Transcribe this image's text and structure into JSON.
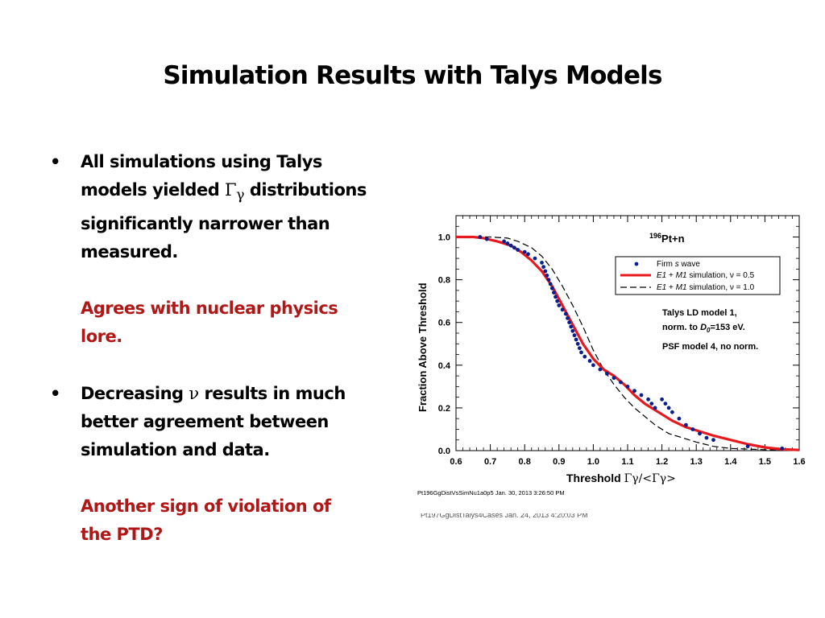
{
  "slide": {
    "title": "Simulation Results with Talys Models",
    "bullets": [
      {
        "lines": [
          "All simulations using Talys",
          "significantly narrower than",
          "measured."
        ],
        "line2_pre": "models yielded ",
        "line2_gamma": "Γ",
        "line2_gamma_sub": "γ",
        "line2_post": " distributions",
        "note_lines": [
          "Agrees with nuclear physics",
          "lore."
        ]
      },
      {
        "line1_pre": "Decreasing ",
        "line1_nu": "ν",
        "line1_post": " results in much",
        "lines": [
          "better agreement between",
          "simulation and data."
        ],
        "note_lines": [
          "Another sign of violation of",
          "the PTD?"
        ]
      }
    ],
    "bullet_marker": "•"
  },
  "chart_data": {
    "type": "line",
    "title": "196Pt+n",
    "title_sup": "196",
    "title_main": "Pt+n",
    "xlabel_pre": "Threshold ",
    "xlabel_formula": "Γγ/<Γγ>",
    "ylabel": "Fraction Above Threshold",
    "xlim": [
      0.6,
      1.6
    ],
    "ylim": [
      0.0,
      1.1
    ],
    "x_ticks": [
      "0.6",
      "0.7",
      "0.8",
      "0.9",
      "1.0",
      "1.1",
      "1.2",
      "1.3",
      "1.4",
      "1.5",
      "1.6"
    ],
    "y_ticks": [
      "0.0",
      "0.2",
      "0.4",
      "0.6",
      "0.8",
      "1.0"
    ],
    "legend": {
      "placement": "top-right",
      "entries": [
        {
          "pre": "Firm ",
          "em": "s",
          "post": " wave",
          "style": "points"
        },
        {
          "pre": "",
          "em": "E1",
          "mid": " + ",
          "em2": "M1",
          "post": " simulation, ν = 0.5",
          "style": "solid-red"
        },
        {
          "pre": "",
          "em": "E1",
          "mid": " + ",
          "em2": "M1",
          "post": " simulation, ν = 1.0",
          "style": "dashed-black"
        }
      ]
    },
    "annotations": [
      "Talys LD model 1,",
      "norm. to ",
      "D",
      "0",
      "=153 eV.",
      "PSF model 4, no norm."
    ],
    "footer_stamp": "Pt196GgDistVsSimNu1a0p5  Jan. 30, 2013  3:26:50 PM",
    "under_stamp": "Pt197GgDistTalys4Cases  Jan. 24, 2013  4:20:03 PM",
    "colors": {
      "data": "#0a1f8f",
      "sim_nu05": "#e8191c",
      "sim_nu10": "#000000"
    },
    "series": [
      {
        "name": "Firm s wave",
        "style": "points",
        "points": [
          [
            0.67,
            1.0
          ],
          [
            0.69,
            0.99
          ],
          [
            0.74,
            0.98
          ],
          [
            0.75,
            0.97
          ],
          [
            0.76,
            0.96
          ],
          [
            0.77,
            0.95
          ],
          [
            0.78,
            0.94
          ],
          [
            0.8,
            0.93
          ],
          [
            0.81,
            0.92
          ],
          [
            0.83,
            0.9
          ],
          [
            0.85,
            0.88
          ],
          [
            0.855,
            0.86
          ],
          [
            0.86,
            0.84
          ],
          [
            0.865,
            0.82
          ],
          [
            0.87,
            0.8
          ],
          [
            0.875,
            0.78
          ],
          [
            0.88,
            0.76
          ],
          [
            0.885,
            0.74
          ],
          [
            0.89,
            0.72
          ],
          [
            0.895,
            0.7
          ],
          [
            0.9,
            0.68
          ],
          [
            0.91,
            0.66
          ],
          [
            0.92,
            0.64
          ],
          [
            0.925,
            0.62
          ],
          [
            0.93,
            0.6
          ],
          [
            0.935,
            0.58
          ],
          [
            0.94,
            0.56
          ],
          [
            0.945,
            0.54
          ],
          [
            0.95,
            0.52
          ],
          [
            0.955,
            0.5
          ],
          [
            0.96,
            0.48
          ],
          [
            0.965,
            0.46
          ],
          [
            0.975,
            0.44
          ],
          [
            0.99,
            0.42
          ],
          [
            1.0,
            0.4
          ],
          [
            1.02,
            0.38
          ],
          [
            1.04,
            0.36
          ],
          [
            1.06,
            0.34
          ],
          [
            1.08,
            0.32
          ],
          [
            1.1,
            0.3
          ],
          [
            1.12,
            0.28
          ],
          [
            1.14,
            0.26
          ],
          [
            1.16,
            0.24
          ],
          [
            1.17,
            0.22
          ],
          [
            1.18,
            0.2
          ],
          [
            1.2,
            0.24
          ],
          [
            1.21,
            0.22
          ],
          [
            1.22,
            0.2
          ],
          [
            1.23,
            0.18
          ],
          [
            1.25,
            0.15
          ],
          [
            1.27,
            0.12
          ],
          [
            1.29,
            0.1
          ],
          [
            1.31,
            0.08
          ],
          [
            1.33,
            0.06
          ],
          [
            1.35,
            0.05
          ],
          [
            1.45,
            0.02
          ],
          [
            1.55,
            0.01
          ]
        ]
      },
      {
        "name": "E1 + M1 simulation, ν = 0.5",
        "style": "solid",
        "points": [
          [
            0.6,
            1.0
          ],
          [
            0.65,
            1.0
          ],
          [
            0.68,
            0.995
          ],
          [
            0.72,
            0.98
          ],
          [
            0.76,
            0.96
          ],
          [
            0.79,
            0.93
          ],
          [
            0.82,
            0.89
          ],
          [
            0.85,
            0.84
          ],
          [
            0.88,
            0.77
          ],
          [
            0.91,
            0.68
          ],
          [
            0.94,
            0.59
          ],
          [
            0.97,
            0.5
          ],
          [
            1.0,
            0.43
          ],
          [
            1.03,
            0.38
          ],
          [
            1.06,
            0.35
          ],
          [
            1.09,
            0.31
          ],
          [
            1.12,
            0.26
          ],
          [
            1.15,
            0.22
          ],
          [
            1.19,
            0.18
          ],
          [
            1.23,
            0.14
          ],
          [
            1.27,
            0.11
          ],
          [
            1.31,
            0.09
          ],
          [
            1.35,
            0.07
          ],
          [
            1.4,
            0.05
          ],
          [
            1.45,
            0.03
          ],
          [
            1.5,
            0.015
          ],
          [
            1.55,
            0.006
          ],
          [
            1.6,
            0.003
          ]
        ]
      },
      {
        "name": "E1 + M1 simulation, ν = 1.0",
        "style": "dashed",
        "points": [
          [
            0.6,
            1.0
          ],
          [
            0.7,
            1.0
          ],
          [
            0.75,
            0.995
          ],
          [
            0.78,
            0.98
          ],
          [
            0.82,
            0.95
          ],
          [
            0.85,
            0.91
          ],
          [
            0.88,
            0.85
          ],
          [
            0.91,
            0.77
          ],
          [
            0.94,
            0.68
          ],
          [
            0.97,
            0.58
          ],
          [
            1.0,
            0.47
          ],
          [
            1.03,
            0.38
          ],
          [
            1.06,
            0.31
          ],
          [
            1.09,
            0.25
          ],
          [
            1.12,
            0.2
          ],
          [
            1.15,
            0.16
          ],
          [
            1.18,
            0.12
          ],
          [
            1.22,
            0.08
          ],
          [
            1.26,
            0.06
          ],
          [
            1.3,
            0.04
          ],
          [
            1.35,
            0.02
          ],
          [
            1.4,
            0.01
          ],
          [
            1.5,
            0.004
          ],
          [
            1.6,
            0.001
          ]
        ]
      }
    ]
  }
}
